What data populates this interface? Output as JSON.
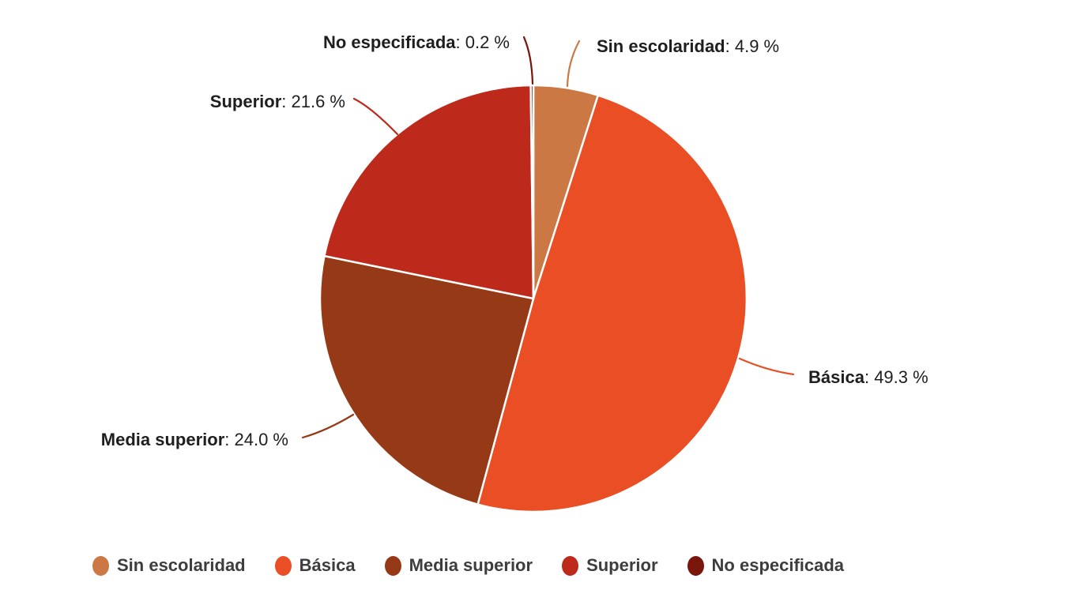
{
  "chart_data": {
    "type": "pie",
    "title": "",
    "unit": "%",
    "categories": [
      "Sin escolaridad",
      "Básica",
      "Media superior",
      "Superior",
      "No especificada"
    ],
    "values": [
      4.9,
      49.3,
      24.0,
      21.6,
      0.2
    ],
    "value_labels": [
      "4.9 %",
      "49.3 %",
      "24.0 %",
      "21.6 %",
      "0.2 %"
    ],
    "colors": [
      "#CB7845",
      "#E94E25",
      "#953917",
      "#BD291B",
      "#7A150C"
    ],
    "legend_position": "bottom",
    "start_angle_deg": 0,
    "direction": "clockwise",
    "background": "#ffffff",
    "label_format": "name: value %"
  }
}
